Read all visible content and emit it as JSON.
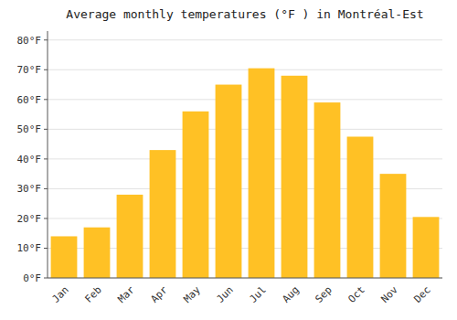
{
  "chart_data": {
    "type": "bar",
    "title": "Average monthly temperatures (°F ) in Montréal-Est",
    "categories": [
      "Jan",
      "Feb",
      "Mar",
      "Apr",
      "May",
      "Jun",
      "Jul",
      "Aug",
      "Sep",
      "Oct",
      "Nov",
      "Dec"
    ],
    "values": [
      14,
      17,
      28,
      43,
      56,
      65,
      70.5,
      68,
      59,
      47.5,
      35,
      20.5
    ],
    "color": "#FFC125",
    "ylim": [
      0,
      83
    ],
    "yticks": [
      {
        "value": 0,
        "label": "0°F"
      },
      {
        "value": 10,
        "label": "10°F"
      },
      {
        "value": 20,
        "label": "20°F"
      },
      {
        "value": 30,
        "label": "30°F"
      },
      {
        "value": 40,
        "label": "40°F"
      },
      {
        "value": 50,
        "label": "50°F"
      },
      {
        "value": 60,
        "label": "60°F"
      },
      {
        "value": 70,
        "label": "70°F"
      },
      {
        "value": 80,
        "label": "80°F"
      }
    ],
    "grid": true
  }
}
